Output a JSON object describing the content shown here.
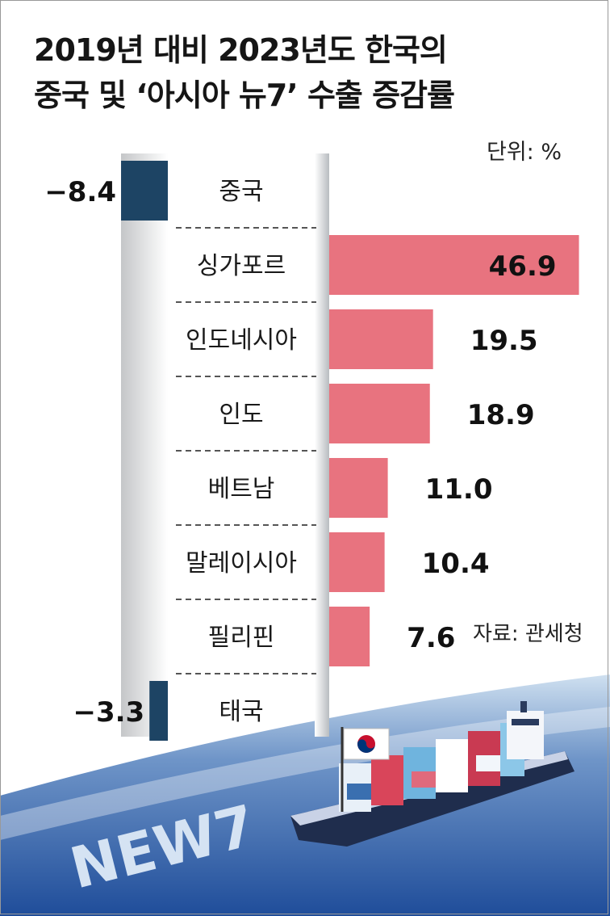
{
  "title": {
    "line1": "2019년 대비 2023년도 한국의",
    "line2": "중국 및 ‘아시아 뉴7’ 수출 증감률"
  },
  "unit": "단위: %",
  "source": "자료: 관세청",
  "art_text": "NEW7",
  "colors": {
    "positive": "#e8737f",
    "negative": "#1d4464",
    "divider": "#555555"
  },
  "chart_data": {
    "type": "bar",
    "orientation": "horizontal",
    "title": "2019년 대비 2023년도 한국의 중국 및 ‘아시아 뉴7’ 수출 증감률",
    "unit": "%",
    "categories": [
      "중국",
      "싱가포르",
      "인도네시아",
      "인도",
      "베트남",
      "말레이시아",
      "필리핀",
      "태국"
    ],
    "values": [
      -8.4,
      46.9,
      19.5,
      18.9,
      11.0,
      10.4,
      7.6,
      -3.3
    ],
    "value_labels": [
      "−8.4",
      "46.9",
      "19.5",
      "18.9",
      "11.0",
      "10.4",
      "7.6",
      "−3.3"
    ],
    "xlim": [
      -10,
      50
    ],
    "grid": false,
    "legend": "none"
  }
}
